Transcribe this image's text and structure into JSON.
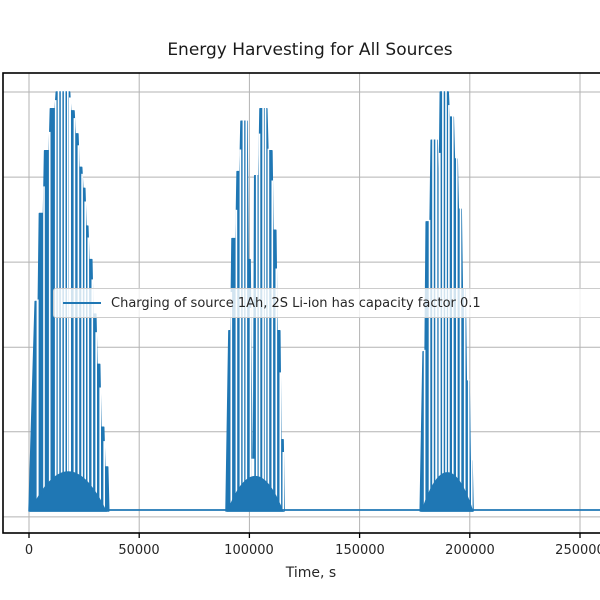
{
  "chart_data": {
    "type": "line",
    "title": "Energy Harvesting for All Sources",
    "xlabel": "Time, s",
    "ylabel": "",
    "legend": {
      "label": "Charging of source 1Ah, 2S Li-ion has capacity factor 0.1",
      "position": "center-left, clipped at right edge of image"
    },
    "series_color": "#1f77b4",
    "grid_color": "#b3b3b3",
    "frame_color": "#000000",
    "grid": true,
    "x_ticks": [
      0,
      50000,
      100000,
      150000,
      200000,
      250000
    ],
    "x_tick_labels": [
      "0",
      "50000",
      "100000",
      "150000",
      "200000",
      "250000"
    ],
    "x_view_max": 268000,
    "y_tick_labels_visible": false,
    "y_note": "y values normalized: 0 = idle baseline, 1 = tallest peak; y tick labels are cropped out of the image",
    "y_gridlines_normalized": [
      1.0,
      0.797,
      0.594,
      0.391,
      0.189,
      -0.014
    ],
    "baseline_value": 0,
    "bursts": [
      {
        "name": "burst-1",
        "envelope": [
          [
            0,
            0
          ],
          [
            2800,
            0.5
          ],
          [
            4200,
            0.5
          ],
          [
            4700,
            0.71
          ],
          [
            6600,
            0.71
          ],
          [
            7100,
            0.86
          ],
          [
            9200,
            0.86
          ],
          [
            9700,
            0.96
          ],
          [
            11900,
            0.96
          ],
          [
            12400,
            1.0
          ],
          [
            18400,
            1.0
          ],
          [
            18900,
            0.955
          ],
          [
            20400,
            0.955
          ],
          [
            20900,
            0.9
          ],
          [
            22200,
            0.9
          ],
          [
            22700,
            0.82
          ],
          [
            23900,
            0.82
          ],
          [
            24400,
            0.77
          ],
          [
            25300,
            0.77
          ],
          [
            25800,
            0.68
          ],
          [
            26700,
            0.68
          ],
          [
            27200,
            0.6
          ],
          [
            28500,
            0.6
          ],
          [
            29000,
            0.47
          ],
          [
            30300,
            0.47
          ],
          [
            30800,
            0.35
          ],
          [
            32100,
            0.35
          ],
          [
            32600,
            0.2
          ],
          [
            33900,
            0.2
          ],
          [
            34400,
            0.105
          ],
          [
            35700,
            0.105
          ],
          [
            36200,
            0
          ]
        ],
        "dome": {
          "start": 900,
          "end": 34800,
          "peak": 0.093
        },
        "gaps": [
          {
            "t": 3900,
            "w": 2
          },
          {
            "t": 6800
          },
          {
            "t": 9400
          },
          {
            "t": 12100
          },
          {
            "t": 13400
          },
          {
            "t": 14800
          },
          {
            "t": 16200
          },
          {
            "t": 17600
          },
          {
            "t": 18600,
            "w": 2
          },
          {
            "t": 20600
          },
          {
            "t": 22400
          },
          {
            "t": 24100
          },
          {
            "t": 25500
          },
          {
            "t": 26900
          },
          {
            "t": 28700
          },
          {
            "t": 30500
          },
          {
            "t": 32300
          },
          {
            "t": 34100
          }
        ]
      },
      {
        "name": "burst-2",
        "envelope": [
          [
            89400,
            0
          ],
          [
            90700,
            0.43
          ],
          [
            91600,
            0.43
          ],
          [
            92100,
            0.65
          ],
          [
            93900,
            0.65
          ],
          [
            94400,
            0.81
          ],
          [
            95700,
            0.81
          ],
          [
            96200,
            0.93
          ],
          [
            98900,
            0.93
          ],
          [
            99400,
            0.6
          ],
          [
            100300,
            0.6
          ],
          [
            100800,
            0.3
          ],
          [
            101200,
            0.12
          ],
          [
            101900,
            0.12
          ],
          [
            102400,
            0.8
          ],
          [
            104300,
            0.8
          ],
          [
            104800,
            0.96
          ],
          [
            107900,
            0.96
          ],
          [
            108400,
            0.86
          ],
          [
            110200,
            0.86
          ],
          [
            110700,
            0.67
          ],
          [
            112000,
            0.67
          ],
          [
            112500,
            0.43
          ],
          [
            113800,
            0.43
          ],
          [
            114300,
            0.17
          ],
          [
            115300,
            0.17
          ],
          [
            115800,
            0
          ]
        ],
        "dome": {
          "start": 90300,
          "end": 115000,
          "peak": 0.082
        },
        "gaps": [
          {
            "t": 91800
          },
          {
            "t": 94100
          },
          {
            "t": 95900
          },
          {
            "t": 97300
          },
          {
            "t": 98600
          },
          {
            "t": 100500
          },
          {
            "t": 101550,
            "w": 3
          },
          {
            "t": 103300
          },
          {
            "t": 104600
          },
          {
            "t": 106200
          },
          {
            "t": 107300
          },
          {
            "t": 108600
          },
          {
            "t": 110400
          },
          {
            "t": 112200
          },
          {
            "t": 114000
          },
          {
            "t": 115400
          }
        ]
      },
      {
        "name": "burst-3",
        "envelope": [
          [
            177500,
            0
          ],
          [
            178800,
            0.38
          ],
          [
            179700,
            0.38
          ],
          [
            180200,
            0.69
          ],
          [
            182000,
            0.69
          ],
          [
            182500,
            0.885
          ],
          [
            185200,
            0.885
          ],
          [
            185700,
            0.75
          ],
          [
            186100,
            0.75
          ],
          [
            186600,
            1.0
          ],
          [
            190200,
            1.0
          ],
          [
            190700,
            0.94
          ],
          [
            192500,
            0.94
          ],
          [
            193000,
            0.84
          ],
          [
            194300,
            0.84
          ],
          [
            194800,
            0.72
          ],
          [
            196100,
            0.72
          ],
          [
            196600,
            0.53
          ],
          [
            197900,
            0.53
          ],
          [
            198400,
            0.31
          ],
          [
            199700,
            0.31
          ],
          [
            200200,
            0.12
          ],
          [
            201000,
            0.12
          ],
          [
            201500,
            0
          ]
        ],
        "dome": {
          "start": 178400,
          "end": 201200,
          "peak": 0.091
        },
        "gaps": [
          {
            "t": 179500
          },
          {
            "t": 181700
          },
          {
            "t": 183300
          },
          {
            "t": 184800,
            "w": 2
          },
          {
            "t": 186300,
            "w": 2
          },
          {
            "t": 187800
          },
          {
            "t": 189200
          },
          {
            "t": 190500
          },
          {
            "t": 192300
          },
          {
            "t": 194100
          },
          {
            "t": 195800
          },
          {
            "t": 197700
          },
          {
            "t": 199500
          },
          {
            "t": 200900
          }
        ]
      }
    ]
  }
}
